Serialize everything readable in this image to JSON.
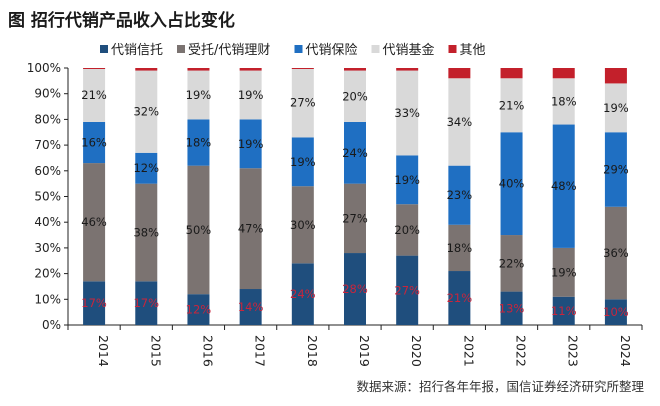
{
  "title": "图  招行代销产品收入占比变化",
  "source": "数据来源：招行各年年报，国信证券经济研究所整理",
  "chart_data": {
    "type": "bar",
    "stacked": true,
    "percent": true,
    "categories": [
      "2014",
      "2015",
      "2016",
      "2017",
      "2018",
      "2019",
      "2020",
      "2021",
      "2022",
      "2023",
      "2024"
    ],
    "ylim": [
      0,
      100
    ],
    "yticks": [
      "0%",
      "10%",
      "20%",
      "30%",
      "40%",
      "50%",
      "60%",
      "70%",
      "80%",
      "90%",
      "100%"
    ],
    "legend_position": "top",
    "series": [
      {
        "name": "代销信托",
        "color": "#1f4e7d",
        "label_color": "#c8253c",
        "values": [
          17,
          17,
          12,
          14,
          24,
          28,
          27,
          21,
          13,
          11,
          10
        ]
      },
      {
        "name": "受托/代销理财",
        "color": "#7b7371",
        "label_color": "#1a1a1a",
        "values": [
          46,
          38,
          50,
          47,
          30,
          27,
          20,
          18,
          22,
          19,
          36
        ]
      },
      {
        "name": "代销保险",
        "color": "#1f6fc2",
        "label_color": "#1a1a1a",
        "values": [
          16,
          12,
          18,
          19,
          19,
          24,
          19,
          23,
          40,
          48,
          29
        ]
      },
      {
        "name": "代销基金",
        "color": "#d9d9d9",
        "label_color": "#1a1a1a",
        "values": [
          21,
          32,
          19,
          19,
          27,
          20,
          33,
          34,
          21,
          18,
          19
        ]
      },
      {
        "name": "其他",
        "color": "#c3202b",
        "values": [
          1,
          1,
          1,
          1,
          0.5,
          1,
          1,
          4,
          4,
          4,
          6
        ]
      }
    ]
  }
}
